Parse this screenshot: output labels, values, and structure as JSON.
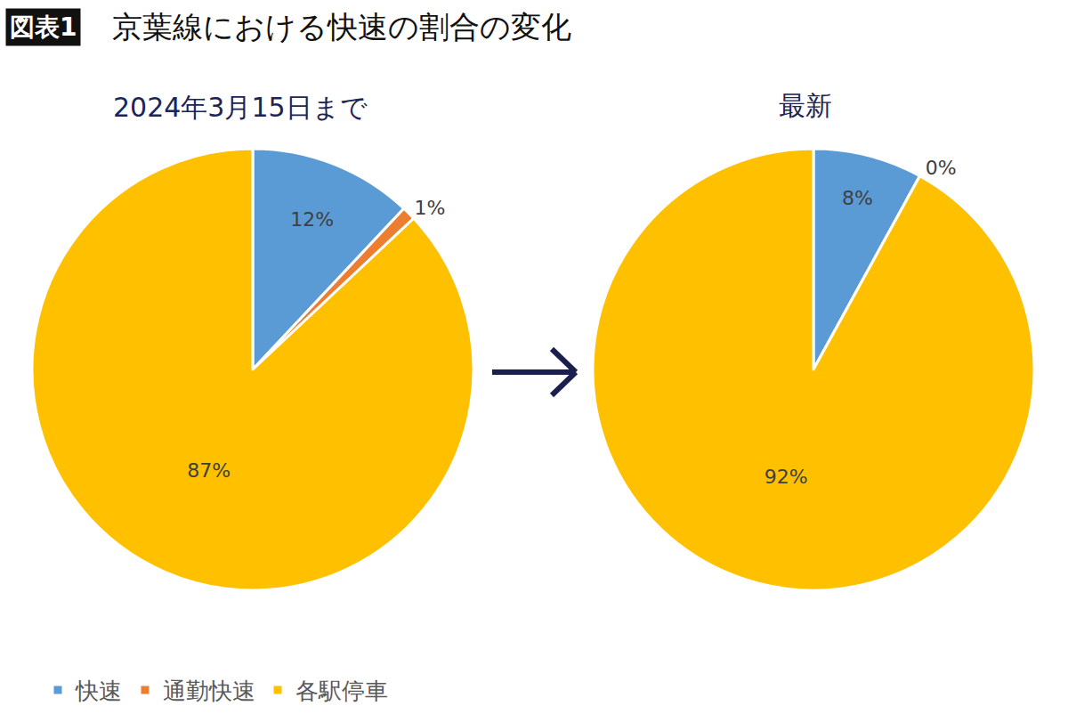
{
  "figure_label": "図表1",
  "title": "京葉線における快速の割合の変化",
  "chart_data": [
    {
      "type": "pie",
      "title": "2024年3月15日まで",
      "categories": [
        "快速",
        "通勤快速",
        "各駅停車"
      ],
      "values": [
        12,
        1,
        87
      ],
      "value_labels": [
        "12%",
        "1%",
        "87%"
      ],
      "colors": [
        "#5b9bd5",
        "#ed7d31",
        "#ffc000"
      ],
      "data_labels": true,
      "legend": "bottom"
    },
    {
      "type": "pie",
      "title": "最新",
      "categories": [
        "快速",
        "通勤快速",
        "各駅停車"
      ],
      "values": [
        8,
        0,
        92
      ],
      "value_labels": [
        "8%",
        "0%",
        "92%"
      ],
      "colors": [
        "#5b9bd5",
        "#ed7d31",
        "#ffc000"
      ],
      "data_labels": true,
      "legend": "bottom"
    }
  ]
}
